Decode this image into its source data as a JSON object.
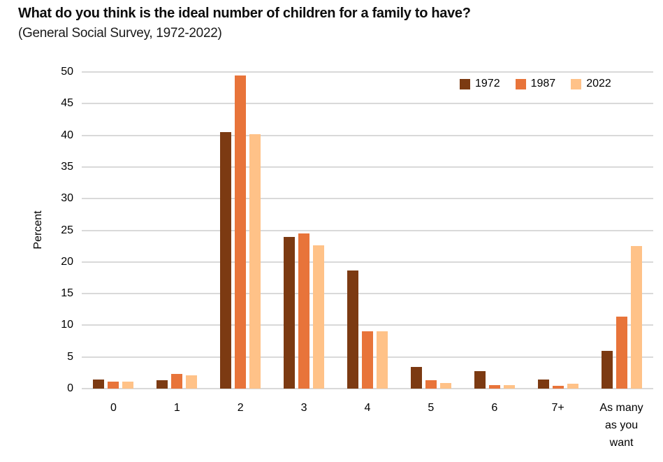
{
  "chart_data": {
    "type": "bar",
    "title": "What do you think is the ideal number of children for a family to have?",
    "subtitle": "(General Social Survey, 1972-2022)",
    "ylabel": "Percent",
    "xlabel": "",
    "ylim": [
      0,
      50
    ],
    "yticks": [
      0,
      5,
      10,
      15,
      20,
      25,
      30,
      35,
      40,
      45,
      50
    ],
    "grid": true,
    "legend_position": "top-right-inside",
    "categories": [
      "0",
      "1",
      "2",
      "3",
      "4",
      "5",
      "6",
      "7+",
      "As many as you want"
    ],
    "series": [
      {
        "name": "1972",
        "color": "#7C3A12",
        "values": [
          1.4,
          1.3,
          40.5,
          24.0,
          18.7,
          3.4,
          2.8,
          1.4,
          6.0
        ]
      },
      {
        "name": "1987",
        "color": "#E8743A",
        "values": [
          1.1,
          2.3,
          49.4,
          24.5,
          9.0,
          1.3,
          0.6,
          0.4,
          11.4
        ]
      },
      {
        "name": "2022",
        "color": "#FFC288",
        "values": [
          1.1,
          2.1,
          40.2,
          22.6,
          9.0,
          0.9,
          0.5,
          0.8,
          22.5
        ]
      }
    ],
    "colors": {
      "gridline": "#D9D9D9",
      "text": "#000000",
      "title": "#0d0d0d"
    }
  }
}
